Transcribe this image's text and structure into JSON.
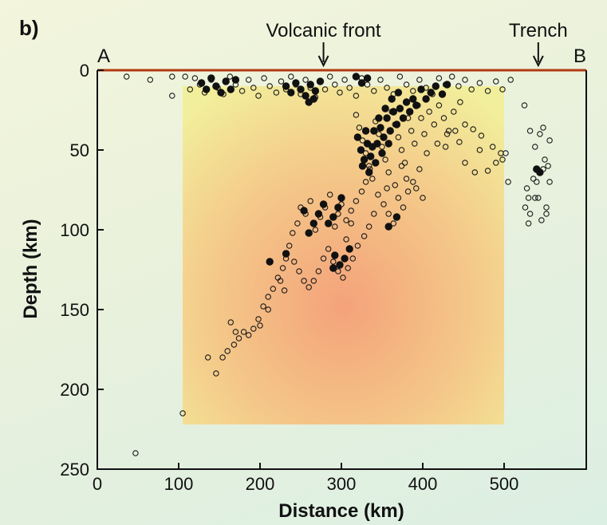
{
  "chart_data": {
    "type": "scatter",
    "panel_label": "b)",
    "xlabel": "Distance (km)",
    "ylabel": "Depth (km)",
    "xlim": [
      0,
      600
    ],
    "ylim": [
      250,
      0
    ],
    "y_inverted": true,
    "xticks": [
      "0",
      "100",
      "200",
      "300",
      "400",
      "500"
    ],
    "yticks": [
      "0",
      "50",
      "100",
      "150",
      "200",
      "250"
    ],
    "xtick_values": [
      0,
      100,
      200,
      300,
      400,
      500
    ],
    "ytick_values": [
      0,
      50,
      100,
      150,
      200,
      250
    ],
    "endpoint_labels": {
      "start": "A",
      "end": "B"
    },
    "annotations": [
      {
        "text": "Volcanic front",
        "x": 278
      },
      {
        "text": "Trench",
        "x": 542
      }
    ],
    "surface_line_color": "#b23a12",
    "shading": {
      "x_range": [
        105,
        500
      ],
      "y_range": [
        10,
        222
      ],
      "colors": [
        "#f2f09a",
        "#f5a77a"
      ]
    },
    "grid": false,
    "series": [
      {
        "marker": "open",
        "points": [
          [
            36,
            4
          ],
          [
            65,
            6
          ],
          [
            92,
            4
          ],
          [
            92,
            16
          ],
          [
            108,
            4
          ],
          [
            114,
            12
          ],
          [
            120,
            5
          ],
          [
            126,
            9
          ],
          [
            132,
            14
          ],
          [
            140,
            6
          ],
          [
            148,
            11
          ],
          [
            155,
            15
          ],
          [
            163,
            4
          ],
          [
            170,
            9
          ],
          [
            178,
            13
          ],
          [
            186,
            6
          ],
          [
            192,
            11
          ],
          [
            198,
            16
          ],
          [
            205,
            5
          ],
          [
            212,
            10
          ],
          [
            220,
            14
          ],
          [
            226,
            7
          ],
          [
            232,
            12
          ],
          [
            238,
            4
          ],
          [
            244,
            9
          ],
          [
            250,
            15
          ],
          [
            256,
            6
          ],
          [
            262,
            11
          ],
          [
            268,
            17
          ],
          [
            274,
            7
          ],
          [
            280,
            12
          ],
          [
            286,
            4
          ],
          [
            292,
            9
          ],
          [
            298,
            14
          ],
          [
            304,
            6
          ],
          [
            310,
            11
          ],
          [
            318,
            16
          ],
          [
            325,
            5
          ],
          [
            332,
            9
          ],
          [
            340,
            13
          ],
          [
            348,
            6
          ],
          [
            356,
            11
          ],
          [
            364,
            15
          ],
          [
            372,
            4
          ],
          [
            380,
            9
          ],
          [
            388,
            13
          ],
          [
            396,
            6
          ],
          [
            404,
            11
          ],
          [
            412,
            15
          ],
          [
            420,
            5
          ],
          [
            428,
            9
          ],
          [
            436,
            4
          ],
          [
            444,
            10
          ],
          [
            452,
            6
          ],
          [
            460,
            12
          ],
          [
            470,
            8
          ],
          [
            480,
            13
          ],
          [
            490,
            7
          ],
          [
            498,
            12
          ],
          [
            508,
            6
          ],
          [
            318,
            28
          ],
          [
            322,
            36
          ],
          [
            326,
            44
          ],
          [
            330,
            52
          ],
          [
            334,
            60
          ],
          [
            338,
            68
          ],
          [
            342,
            32
          ],
          [
            346,
            40
          ],
          [
            350,
            48
          ],
          [
            354,
            56
          ],
          [
            358,
            64
          ],
          [
            362,
            26
          ],
          [
            366,
            34
          ],
          [
            370,
            42
          ],
          [
            374,
            50
          ],
          [
            378,
            58
          ],
          [
            382,
            30
          ],
          [
            386,
            38
          ],
          [
            390,
            46
          ],
          [
            394,
            22
          ],
          [
            398,
            30
          ],
          [
            402,
            40
          ],
          [
            408,
            26
          ],
          [
            414,
            34
          ],
          [
            420,
            22
          ],
          [
            426,
            30
          ],
          [
            432,
            38
          ],
          [
            438,
            26
          ],
          [
            446,
            20
          ],
          [
            452,
            34
          ],
          [
            418,
            46
          ],
          [
            428,
            48
          ],
          [
            430,
            40
          ],
          [
            405,
            52
          ],
          [
            445,
            45
          ],
          [
            440,
            38
          ],
          [
            462,
            37
          ],
          [
            470,
            50
          ],
          [
            452,
            58
          ],
          [
            486,
            48
          ],
          [
            496,
            52
          ],
          [
            502,
            52
          ],
          [
            464,
            64
          ],
          [
            480,
            63
          ],
          [
            490,
            58
          ],
          [
            472,
            41
          ],
          [
            498,
            56
          ],
          [
            505,
            70
          ],
          [
            335,
            62
          ],
          [
            330,
            70
          ],
          [
            325,
            76
          ],
          [
            318,
            82
          ],
          [
            312,
            88
          ],
          [
            306,
            94
          ],
          [
            300,
            84
          ],
          [
            296,
            90
          ],
          [
            292,
            98
          ],
          [
            286,
            78
          ],
          [
            280,
            86
          ],
          [
            274,
            92
          ],
          [
            268,
            100
          ],
          [
            262,
            82
          ],
          [
            256,
            90
          ],
          [
            250,
            86
          ],
          [
            246,
            96
          ],
          [
            240,
            102
          ],
          [
            236,
            110
          ],
          [
            232,
            118
          ],
          [
            228,
            124
          ],
          [
            222,
            130
          ],
          [
            216,
            137
          ],
          [
            210,
            142
          ],
          [
            204,
            148
          ],
          [
            198,
            156
          ],
          [
            192,
            162
          ],
          [
            186,
            166
          ],
          [
            180,
            164
          ],
          [
            174,
            168
          ],
          [
            168,
            172
          ],
          [
            160,
            176
          ],
          [
            154,
            180
          ],
          [
            146,
            190
          ],
          [
            136,
            180
          ],
          [
            164,
            158
          ],
          [
            170,
            164
          ],
          [
            200,
            160
          ],
          [
            210,
            150
          ],
          [
            230,
            138
          ],
          [
            225,
            132
          ],
          [
            345,
            78
          ],
          [
            352,
            84
          ],
          [
            358,
            90
          ],
          [
            364,
            96
          ],
          [
            370,
            80
          ],
          [
            376,
            86
          ],
          [
            382,
            76
          ],
          [
            388,
            70
          ],
          [
            340,
            90
          ],
          [
            334,
            98
          ],
          [
            328,
            104
          ],
          [
            320,
            110
          ],
          [
            314,
            118
          ],
          [
            308,
            124
          ],
          [
            302,
            130
          ],
          [
            296,
            126
          ],
          [
            290,
            120
          ],
          [
            284,
            112
          ],
          [
            278,
            118
          ],
          [
            272,
            126
          ],
          [
            266,
            132
          ],
          [
            260,
            136
          ],
          [
            254,
            132
          ],
          [
            248,
            126
          ],
          [
            242,
            120
          ],
          [
            312,
            96
          ],
          [
            306,
            106
          ],
          [
            366,
            72
          ],
          [
            374,
            60
          ],
          [
            380,
            68
          ],
          [
            392,
            74
          ],
          [
            396,
            62
          ],
          [
            400,
            80
          ],
          [
            356,
            74
          ],
          [
            525,
            22
          ],
          [
            532,
            38
          ],
          [
            538,
            48
          ],
          [
            544,
            40
          ],
          [
            550,
            56
          ],
          [
            556,
            44
          ],
          [
            548,
            62
          ],
          [
            536,
            68
          ],
          [
            528,
            74
          ],
          [
            542,
            80
          ],
          [
            552,
            86
          ],
          [
            532,
            90
          ],
          [
            546,
            94
          ],
          [
            526,
            86
          ],
          [
            540,
            70
          ],
          [
            556,
            70
          ],
          [
            554,
            60
          ],
          [
            530,
            80
          ],
          [
            548,
            36
          ],
          [
            552,
            90
          ],
          [
            538,
            80
          ],
          [
            530,
            96
          ],
          [
            105,
            215
          ],
          [
            47,
            240
          ]
        ]
      },
      {
        "marker": "filled",
        "points": [
          [
            128,
            8
          ],
          [
            134,
            12
          ],
          [
            140,
            5
          ],
          [
            146,
            10
          ],
          [
            152,
            14
          ],
          [
            158,
            7
          ],
          [
            164,
            12
          ],
          [
            170,
            6
          ],
          [
            232,
            10
          ],
          [
            238,
            14
          ],
          [
            244,
            8
          ],
          [
            250,
            12
          ],
          [
            256,
            16
          ],
          [
            262,
            9
          ],
          [
            268,
            13
          ],
          [
            274,
            7
          ],
          [
            260,
            20
          ],
          [
            266,
            18
          ],
          [
            318,
            4
          ],
          [
            325,
            8
          ],
          [
            332,
            5
          ],
          [
            320,
            42
          ],
          [
            324,
            50
          ],
          [
            328,
            56
          ],
          [
            332,
            46
          ],
          [
            336,
            54
          ],
          [
            340,
            38
          ],
          [
            344,
            46
          ],
          [
            348,
            36
          ],
          [
            352,
            42
          ],
          [
            356,
            30
          ],
          [
            360,
            38
          ],
          [
            364,
            26
          ],
          [
            368,
            34
          ],
          [
            372,
            24
          ],
          [
            376,
            30
          ],
          [
            380,
            20
          ],
          [
            384,
            26
          ],
          [
            388,
            18
          ],
          [
            392,
            22
          ],
          [
            398,
            12
          ],
          [
            404,
            18
          ],
          [
            410,
            14
          ],
          [
            416,
            10
          ],
          [
            424,
            15
          ],
          [
            430,
            9
          ],
          [
            326,
            60
          ],
          [
            334,
            64
          ],
          [
            342,
            58
          ],
          [
            338,
            48
          ],
          [
            330,
            38
          ],
          [
            346,
            30
          ],
          [
            354,
            24
          ],
          [
            362,
            18
          ],
          [
            370,
            14
          ],
          [
            350,
            52
          ],
          [
            358,
            46
          ],
          [
            300,
            80
          ],
          [
            296,
            86
          ],
          [
            290,
            92
          ],
          [
            284,
            96
          ],
          [
            278,
            84
          ],
          [
            272,
            90
          ],
          [
            266,
            96
          ],
          [
            260,
            102
          ],
          [
            254,
            88
          ],
          [
            212,
            120
          ],
          [
            232,
            115
          ],
          [
            310,
            112
          ],
          [
            304,
            118
          ],
          [
            298,
            122
          ],
          [
            292,
            116
          ],
          [
            368,
            92
          ],
          [
            358,
            98
          ],
          [
            290,
            124
          ],
          [
            540,
            62
          ],
          [
            544,
            64
          ]
        ]
      }
    ]
  }
}
